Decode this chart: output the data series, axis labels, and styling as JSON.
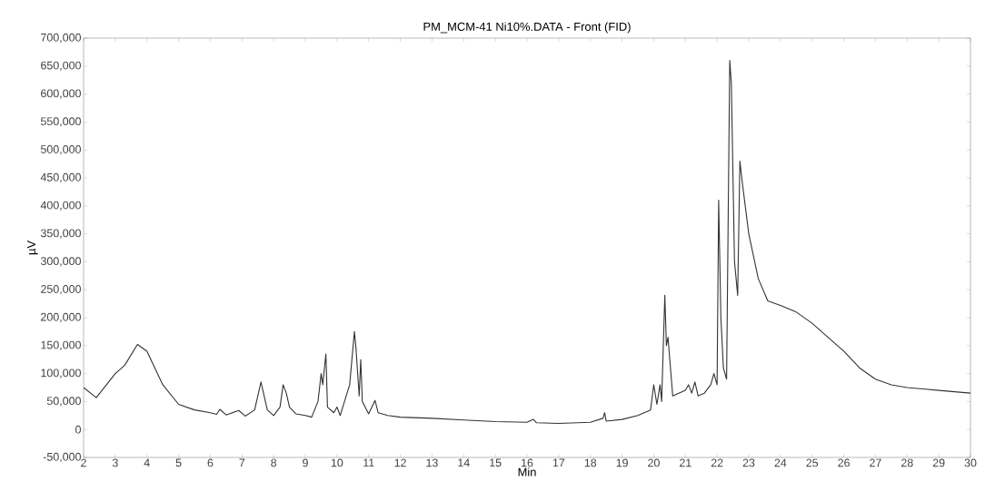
{
  "chart_data": {
    "type": "line",
    "title": "PM_MCM-41 Ni10%.DATA - Front (FID)",
    "xlabel": "Min",
    "ylabel": "µV",
    "x": [
      2.0,
      2.4,
      3.0,
      3.3,
      3.7,
      4.0,
      4.5,
      5.0,
      5.5,
      6.0,
      6.2,
      6.3,
      6.5,
      6.9,
      7.1,
      7.4,
      7.6,
      7.8,
      8.0,
      8.2,
      8.3,
      8.4,
      8.5,
      8.7,
      9.0,
      9.2,
      9.4,
      9.5,
      9.55,
      9.65,
      9.7,
      9.9,
      10.0,
      10.1,
      10.4,
      10.55,
      10.6,
      10.7,
      10.75,
      10.8,
      11.0,
      11.2,
      11.3,
      11.6,
      12.0,
      13.0,
      14.0,
      15.0,
      16.0,
      16.2,
      16.3,
      17.0,
      18.0,
      18.4,
      18.45,
      18.5,
      19.0,
      19.5,
      19.9,
      20.0,
      20.1,
      20.2,
      20.25,
      20.35,
      20.4,
      20.45,
      20.6,
      21.0,
      21.1,
      21.2,
      21.3,
      21.4,
      21.6,
      21.8,
      21.9,
      22.0,
      22.05,
      22.12,
      22.2,
      22.3,
      22.4,
      22.45,
      22.55,
      22.65,
      22.72,
      22.8,
      23.0,
      23.3,
      23.6,
      24.0,
      24.5,
      25.0,
      25.5,
      26.0,
      26.5,
      27.0,
      27.5,
      28.0,
      29.0,
      30.0
    ],
    "series": [
      {
        "color": "#333333",
        "values": [
          75000,
          57000,
          100000,
          115000,
          152000,
          140000,
          80000,
          45000,
          35000,
          30000,
          27000,
          36000,
          26000,
          34000,
          24000,
          35000,
          85000,
          35000,
          25000,
          40000,
          80000,
          65000,
          40000,
          28000,
          25000,
          22000,
          50000,
          100000,
          80000,
          135000,
          40000,
          30000,
          40000,
          25000,
          80000,
          175000,
          145000,
          60000,
          125000,
          50000,
          28000,
          52000,
          30000,
          25000,
          22000,
          20000,
          17000,
          14000,
          13000,
          18000,
          12000,
          11000,
          13000,
          20000,
          30000,
          15000,
          18000,
          25000,
          35000,
          80000,
          45000,
          80000,
          50000,
          240000,
          150000,
          165000,
          60000,
          70000,
          80000,
          65000,
          85000,
          60000,
          65000,
          80000,
          100000,
          80000,
          410000,
          200000,
          110000,
          90000,
          660000,
          620000,
          300000,
          240000,
          480000,
          440000,
          350000,
          270000,
          230000,
          222000,
          210000,
          190000,
          165000,
          140000,
          110000,
          90000,
          80000,
          75000,
          70000,
          65000
        ]
      }
    ],
    "xlim": [
      2,
      30
    ],
    "xticks": [
      2,
      3,
      4,
      5,
      6,
      7,
      8,
      9,
      10,
      11,
      12,
      13,
      14,
      15,
      16,
      17,
      18,
      19,
      20,
      21,
      22,
      23,
      24,
      25,
      26,
      27,
      28,
      29,
      30
    ],
    "ylim": [
      -50000,
      700000
    ],
    "yticks": [
      {
        "value": -50000,
        "label": "-50,000"
      },
      0,
      {
        "value": 50000,
        "label": "50,000"
      },
      {
        "value": 100000,
        "label": "100,000"
      },
      {
        "value": 150000,
        "label": "150,000"
      },
      {
        "value": 200000,
        "label": "200,000"
      },
      {
        "value": 250000,
        "label": "250,000"
      },
      {
        "value": 300000,
        "label": "300,000"
      },
      {
        "value": 350000,
        "label": "350,000"
      },
      {
        "value": 400000,
        "label": "400,000"
      },
      {
        "value": 450000,
        "label": "450,000"
      },
      {
        "value": 500000,
        "label": "500,000"
      },
      {
        "value": 550000,
        "label": "550,000"
      },
      {
        "value": 600000,
        "label": "600,000"
      },
      {
        "value": 650000,
        "label": "650,000"
      },
      {
        "value": 700000,
        "label": "700,000"
      }
    ],
    "marker": "none",
    "line_style": "solid"
  }
}
